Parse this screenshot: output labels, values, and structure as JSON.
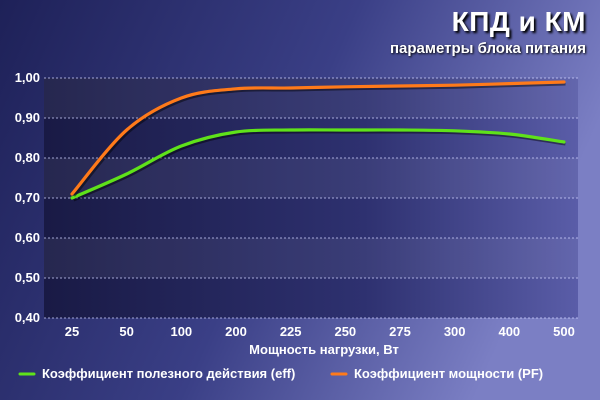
{
  "header": {
    "title": "КПД и КМ",
    "subtitle": "параметры блока питания"
  },
  "colors": {
    "efficiency": "#5fe21a",
    "power_factor": "#ff7a1a"
  },
  "chart_data": {
    "type": "line",
    "title": "КПД и КМ",
    "subtitle": "параметры блока питания",
    "xlabel": "Мощность нагрузки, Вт",
    "ylabel": "",
    "categories": [
      "25",
      "50",
      "100",
      "200",
      "225",
      "250",
      "275",
      "300",
      "400",
      "500"
    ],
    "y_ticks": [
      "0,40",
      "0,50",
      "0,60",
      "0,70",
      "0,80",
      "0,90",
      "1,00"
    ],
    "ylim": [
      0.4,
      1.0
    ],
    "grid": true,
    "legend_position": "bottom",
    "series": [
      {
        "name": "Коэффициент полезного действия (eff)",
        "color": "#5fe21a",
        "values": [
          0.7,
          0.76,
          0.83,
          0.865,
          0.87,
          0.87,
          0.87,
          0.868,
          0.86,
          0.84
        ]
      },
      {
        "name": "Коэффициент мощности (PF)",
        "color": "#ff7a1a",
        "values": [
          0.71,
          0.87,
          0.95,
          0.973,
          0.975,
          0.978,
          0.98,
          0.982,
          0.986,
          0.99
        ]
      }
    ]
  }
}
